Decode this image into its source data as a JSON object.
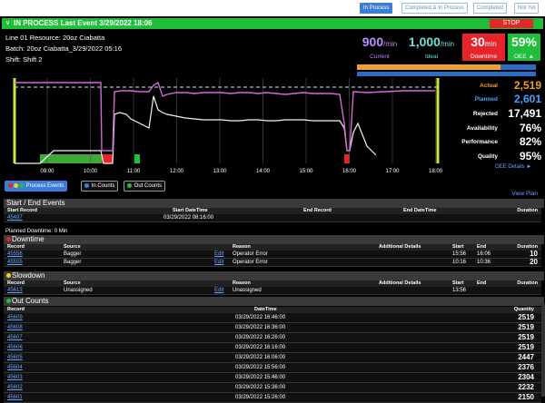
{
  "toolbar": {
    "buttons": [
      {
        "label": "In Process",
        "active": true
      },
      {
        "label": "Completed & In Process",
        "active": false
      },
      {
        "label": "Completed",
        "active": false
      },
      {
        "label": "Not Yet",
        "active": false
      }
    ]
  },
  "status": {
    "text": "IN PROCESS  Last Event 3/29/2022 18:06",
    "stop_label": "STOP",
    "color": "#1fbf3a"
  },
  "info": {
    "line": "Line 01   Resource:  20oz Ciabatta",
    "batch": "Batch:  20oz Ciabatta_3/29/2022 05:16",
    "shift": "Shift:  Shift 2"
  },
  "kpis": {
    "current": {
      "value": "900",
      "unit": "/min",
      "label": "Current",
      "color": "#b98cff"
    },
    "ideal": {
      "value": "1,000",
      "unit": "/min",
      "label": "Ideal"
    },
    "downtime": {
      "value": "30",
      "unit": "min",
      "label": "Downtime"
    },
    "oee": {
      "value": "59%",
      "label": "OEE"
    }
  },
  "progress": {
    "actual_fraction": 0.8
  },
  "chart_data": {
    "type": "line",
    "x_ticks": [
      "09:00",
      "10:00",
      "11:00",
      "12:00",
      "13:00",
      "14:00",
      "15:00",
      "16:00",
      "17:00",
      "18:00"
    ],
    "series": [
      {
        "name": "Planned",
        "color": "#d06bd8"
      },
      {
        "name": "Actual",
        "color": "#ffffff"
      }
    ],
    "grid": true
  },
  "stats": [
    {
      "label": "Actual",
      "value": "2,519",
      "color": "#f0a030"
    },
    {
      "label": "Planned",
      "value": "2,601",
      "color": "#4aa3ff"
    },
    {
      "label": "Rejected",
      "value": "17,491",
      "color": "#ffffff"
    },
    {
      "label": "Availability",
      "value": "76%",
      "color": "#ffffff"
    },
    {
      "label": "Performance",
      "value": "82%",
      "color": "#ffffff"
    },
    {
      "label": "Quality",
      "value": "95%",
      "color": "#ffffff"
    }
  ],
  "oee_details": "OEE Details",
  "tabs": [
    "Process Events",
    "In Counts",
    "Out Counts"
  ],
  "view_plan": "View Plan",
  "start_end": {
    "title": "Start / End Events",
    "headers": [
      "Start Record",
      "Start DateTime",
      "End Record",
      "End DateTime",
      "Duration"
    ],
    "rows": [
      {
        "record": "45497",
        "datetime": "03/29/2022 08:16:00"
      }
    ]
  },
  "planned_downtime": "Planned Downtime: 0 Min",
  "downtime": {
    "title": "Downtime",
    "headers": [
      "Record",
      "Source",
      "Reason",
      "Additional Details",
      "Start",
      "End",
      "Duration"
    ],
    "rows": [
      {
        "record": "45556",
        "edit": "Edit",
        "source": "Bagger",
        "reason": "Operator Error",
        "start": "15:56",
        "end": "16:06",
        "duration": "10"
      },
      {
        "record": "45555",
        "edit": "Edit",
        "source": "Bagger",
        "reason": "Operator Error",
        "start": "10:16",
        "end": "10:36",
        "duration": "20"
      }
    ]
  },
  "slowdown": {
    "title": "Slowdown",
    "headers": [
      "Record",
      "Source",
      "Reason",
      "Additional Details",
      "Start",
      "End",
      "Duration"
    ],
    "rows": [
      {
        "record": "45613",
        "edit": "Edit",
        "source": "Unassigned",
        "reason": "Unassigned",
        "start": "13:56"
      }
    ]
  },
  "out_counts": {
    "title": "Out Counts",
    "headers": [
      "Record",
      "DateTime",
      "Quantity"
    ],
    "rows": [
      {
        "record": "45609",
        "datetime": "03/29/2022 16:46:00",
        "quantity": "2519"
      },
      {
        "record": "45608",
        "datetime": "03/29/2022 16:36:00",
        "quantity": "2519"
      },
      {
        "record": "45607",
        "datetime": "03/29/2022 16:26:00",
        "quantity": "2519"
      },
      {
        "record": "45606",
        "datetime": "03/29/2022 16:16:00",
        "quantity": "2519"
      },
      {
        "record": "45605",
        "datetime": "03/29/2022 16:06:00",
        "quantity": "2447"
      },
      {
        "record": "45604",
        "datetime": "03/29/2022 15:56:00",
        "quantity": "2376"
      },
      {
        "record": "45603",
        "datetime": "03/29/2022 15:46:00",
        "quantity": "2304"
      },
      {
        "record": "45602",
        "datetime": "03/29/2022 15:36:00",
        "quantity": "2232"
      },
      {
        "record": "45601",
        "datetime": "03/29/2022 15:26:00",
        "quantity": "2150"
      }
    ]
  }
}
